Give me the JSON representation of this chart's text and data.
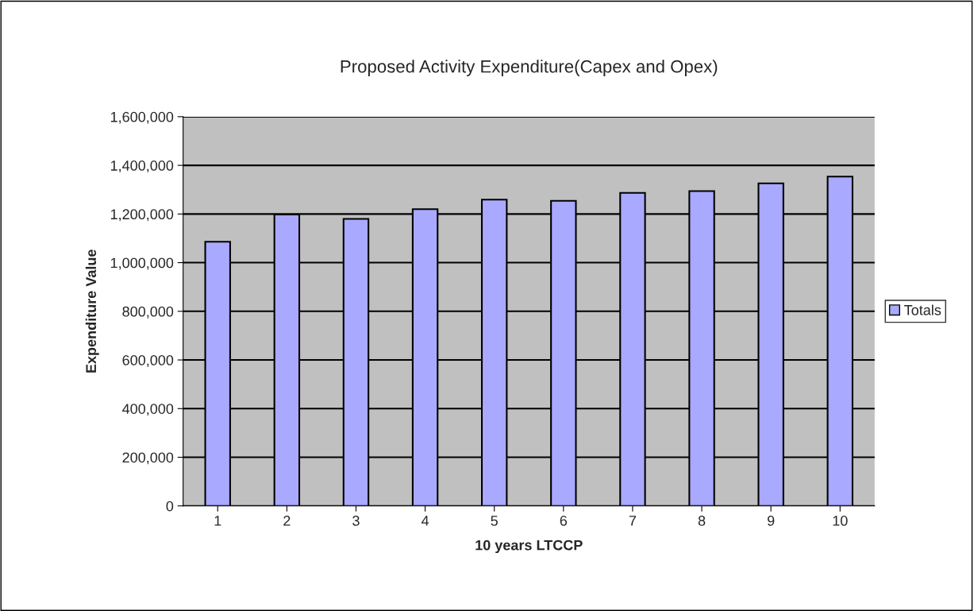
{
  "chart_data": {
    "type": "bar",
    "title": "Proposed Activity Expenditure(Capex and Opex)",
    "xlabel": "10 years LTCCP",
    "ylabel": "Expenditure Value",
    "categories": [
      "1",
      "2",
      "3",
      "4",
      "5",
      "6",
      "7",
      "8",
      "9",
      "10"
    ],
    "series": [
      {
        "name": "Totals",
        "color": "#a9a9ff",
        "values": [
          1086000,
          1198000,
          1180000,
          1220000,
          1259000,
          1254000,
          1287000,
          1294000,
          1326000,
          1354000
        ]
      }
    ],
    "ylim": [
      0,
      1600000
    ],
    "yticks": [
      {
        "value": 0,
        "label": "0"
      },
      {
        "value": 200000,
        "label": "200,000"
      },
      {
        "value": 400000,
        "label": "400,000"
      },
      {
        "value": 600000,
        "label": "600,000"
      },
      {
        "value": 800000,
        "label": "800,000"
      },
      {
        "value": 1000000,
        "label": "1,000,000"
      },
      {
        "value": 1200000,
        "label": "1,200,000"
      },
      {
        "value": 1400000,
        "label": "1,400,000"
      },
      {
        "value": 1600000,
        "label": "1,600,000"
      }
    ],
    "grid": "y",
    "legend": "right"
  }
}
